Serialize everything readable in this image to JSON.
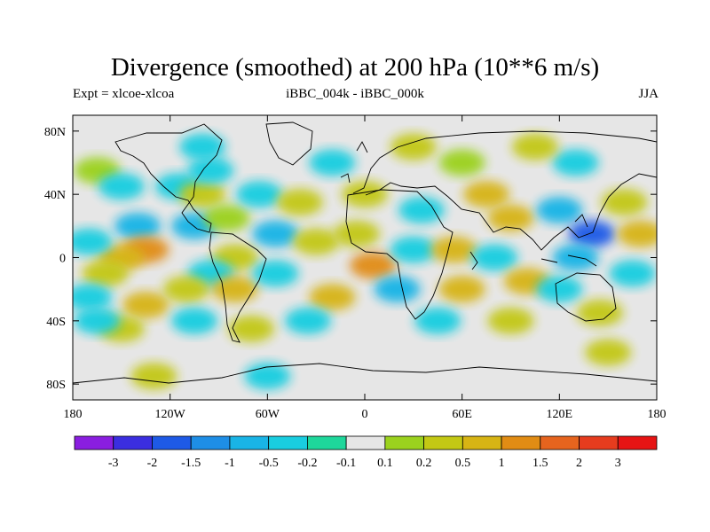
{
  "chart_data": {
    "type": "heatmap",
    "title": "Divergence (smoothed) at 200 hPa (10**6 m/s)",
    "subtitle_left": "Expt = xlcoe-xlcoa",
    "subtitle_center": "iBBC_004k - iBBC_000k",
    "subtitle_right": "JJA",
    "x_range": [
      -180,
      180
    ],
    "y_range": [
      -90,
      90
    ],
    "x_ticks": [
      {
        "value": -180,
        "label": "180"
      },
      {
        "value": -120,
        "label": "120W"
      },
      {
        "value": -60,
        "label": "60W"
      },
      {
        "value": 0,
        "label": "0"
      },
      {
        "value": 60,
        "label": "60E"
      },
      {
        "value": 120,
        "label": "120E"
      },
      {
        "value": 180,
        "label": "180"
      }
    ],
    "y_ticks": [
      {
        "value": 80,
        "label": "80N"
      },
      {
        "value": 40,
        "label": "40N"
      },
      {
        "value": 0,
        "label": "0"
      },
      {
        "value": -40,
        "label": "40S"
      },
      {
        "value": -80,
        "label": "80S"
      }
    ],
    "colorbar": {
      "boundaries": [
        "-3",
        "-2",
        "-1.5",
        "-1",
        "-0.5",
        "-0.2",
        "-0.1",
        "0.1",
        "0.2",
        "0.5",
        "1",
        "1.5",
        "2",
        "3"
      ],
      "colors": [
        "#8a1ee0",
        "#3b2ee0",
        "#1e5ae6",
        "#1e8ee6",
        "#19b4e6",
        "#19cde0",
        "#1ed79b",
        "#e6e6e6",
        "#9bd21e",
        "#c3c814",
        "#d7b414",
        "#e18c14",
        "#e6641e",
        "#e63c1e",
        "#e61414"
      ]
    },
    "cells": [
      {
        "lon": -165,
        "lat": 55,
        "level": 8
      },
      {
        "lon": -150,
        "lat": 45,
        "level": 5
      },
      {
        "lon": -140,
        "lat": 20,
        "level": 4
      },
      {
        "lon": -135,
        "lat": 5,
        "level": 11
      },
      {
        "lon": -150,
        "lat": 0,
        "level": 10
      },
      {
        "lon": -170,
        "lat": 10,
        "level": 5
      },
      {
        "lon": -160,
        "lat": -10,
        "level": 9
      },
      {
        "lon": -170,
        "lat": -25,
        "level": 5
      },
      {
        "lon": -135,
        "lat": -30,
        "level": 10
      },
      {
        "lon": -150,
        "lat": -45,
        "level": 9
      },
      {
        "lon": -165,
        "lat": -40,
        "level": 5
      },
      {
        "lon": -115,
        "lat": 45,
        "level": 5
      },
      {
        "lon": -100,
        "lat": 40,
        "level": 9
      },
      {
        "lon": -95,
        "lat": 55,
        "level": 5
      },
      {
        "lon": -105,
        "lat": 20,
        "level": 4
      },
      {
        "lon": -85,
        "lat": 25,
        "level": 8
      },
      {
        "lon": -80,
        "lat": 0,
        "level": 9
      },
      {
        "lon": -95,
        "lat": -10,
        "level": 5
      },
      {
        "lon": -110,
        "lat": -20,
        "level": 9
      },
      {
        "lon": -80,
        "lat": -20,
        "level": 10
      },
      {
        "lon": -105,
        "lat": -40,
        "level": 5
      },
      {
        "lon": -70,
        "lat": -45,
        "level": 9
      },
      {
        "lon": -65,
        "lat": 40,
        "level": 5
      },
      {
        "lon": -55,
        "lat": 15,
        "level": 4
      },
      {
        "lon": -55,
        "lat": -10,
        "level": 5
      },
      {
        "lon": -40,
        "lat": 35,
        "level": 9
      },
      {
        "lon": -30,
        "lat": 10,
        "level": 9
      },
      {
        "lon": -20,
        "lat": -25,
        "level": 10
      },
      {
        "lon": -35,
        "lat": -40,
        "level": 5
      },
      {
        "lon": 0,
        "lat": 40,
        "level": 9
      },
      {
        "lon": -5,
        "lat": 15,
        "level": 9
      },
      {
        "lon": 5,
        "lat": -5,
        "level": 11
      },
      {
        "lon": 20,
        "lat": -20,
        "level": 4
      },
      {
        "lon": 35,
        "lat": 30,
        "level": 5
      },
      {
        "lon": 30,
        "lat": 5,
        "level": 5
      },
      {
        "lon": 55,
        "lat": 5,
        "level": 10
      },
      {
        "lon": 60,
        "lat": -20,
        "level": 10
      },
      {
        "lon": 45,
        "lat": -40,
        "level": 5
      },
      {
        "lon": 60,
        "lat": 60,
        "level": 8
      },
      {
        "lon": 75,
        "lat": 40,
        "level": 10
      },
      {
        "lon": 90,
        "lat": 25,
        "level": 10
      },
      {
        "lon": 80,
        "lat": 0,
        "level": 5
      },
      {
        "lon": 100,
        "lat": -15,
        "level": 10
      },
      {
        "lon": 90,
        "lat": -40,
        "level": 9
      },
      {
        "lon": 120,
        "lat": 30,
        "level": 4
      },
      {
        "lon": 140,
        "lat": 15,
        "level": 2
      },
      {
        "lon": 130,
        "lat": 0,
        "level": 4
      },
      {
        "lon": 120,
        "lat": -20,
        "level": 5
      },
      {
        "lon": 145,
        "lat": -35,
        "level": 9
      },
      {
        "lon": 160,
        "lat": 35,
        "level": 9
      },
      {
        "lon": 170,
        "lat": 15,
        "level": 10
      },
      {
        "lon": 165,
        "lat": -10,
        "level": 5
      },
      {
        "lon": 150,
        "lat": -60,
        "level": 9
      },
      {
        "lon": -60,
        "lat": -75,
        "level": 5
      },
      {
        "lon": -130,
        "lat": -75,
        "level": 9
      },
      {
        "lon": 30,
        "lat": 70,
        "level": 9
      },
      {
        "lon": -20,
        "lat": 60,
        "level": 5
      },
      {
        "lon": 130,
        "lat": 60,
        "level": 5
      },
      {
        "lon": 105,
        "lat": 70,
        "level": 9
      },
      {
        "lon": -100,
        "lat": 70,
        "level": 5
      }
    ]
  }
}
